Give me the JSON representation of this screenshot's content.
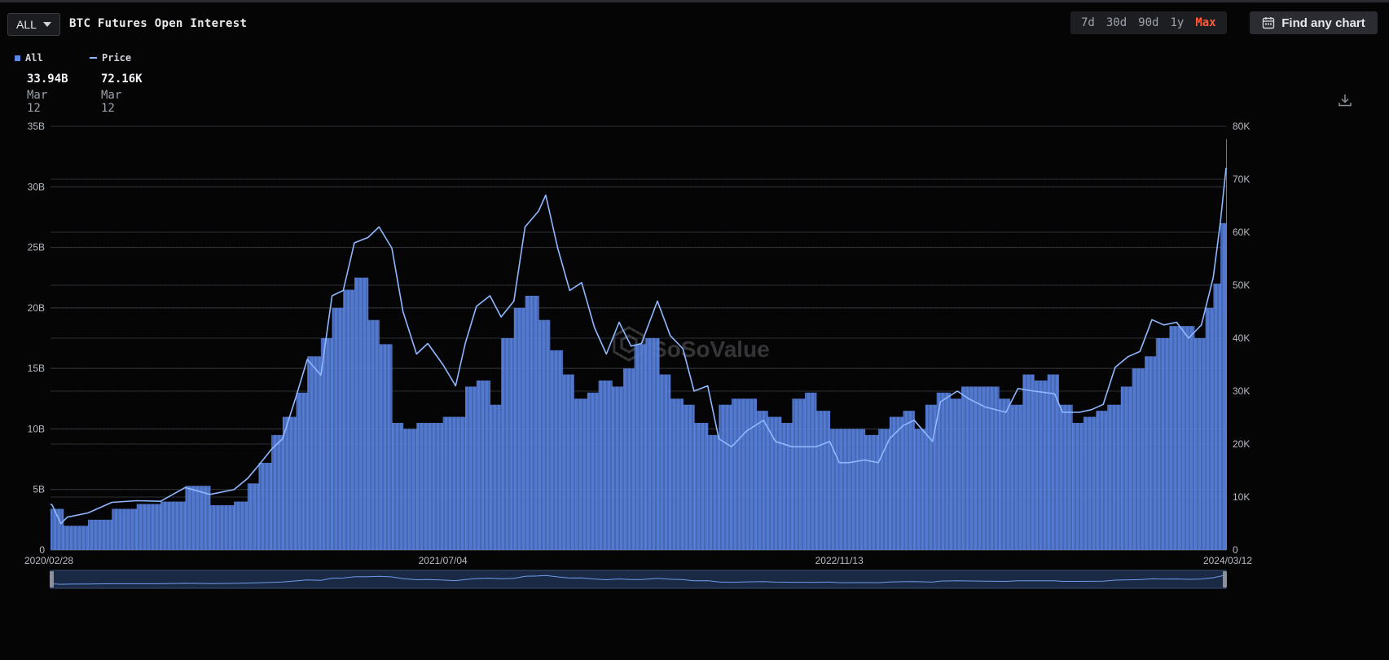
{
  "header": {
    "asset_select": "ALL",
    "title": "BTC Futures Open Interest",
    "ranges": [
      "7d",
      "30d",
      "90d",
      "1y",
      "Max"
    ],
    "active_range": "Max",
    "find_button": "Find any chart"
  },
  "legend": {
    "items": [
      {
        "label": "All",
        "value": "33.94B",
        "date": "Mar 12",
        "color": "#5b86e6",
        "kind": "bar"
      },
      {
        "label": "Price",
        "value": "72.16K",
        "date": "Mar 12",
        "color": "#8fb8ff",
        "kind": "line"
      }
    ]
  },
  "icons": {
    "download": "download-icon",
    "calendar": "calendar-icon",
    "watermark_logo": "sosovalue-logo-icon"
  },
  "watermark_text": "SoSoValue",
  "chart_data": {
    "type": "bar",
    "title": "BTC Futures Open Interest",
    "x_tick_labels": [
      "2020/02/28",
      "2021/07/04",
      "2022/11/13",
      "2024/03/12"
    ],
    "y_left": {
      "ticks": [
        "0",
        "5B",
        "10B",
        "15B",
        "20B",
        "25B",
        "30B",
        "35B"
      ],
      "range": [
        0,
        35
      ],
      "unit": "B"
    },
    "y_right": {
      "ticks": [
        "0",
        "10K",
        "20K",
        "30K",
        "40K",
        "50K",
        "60K",
        "70K",
        "80K"
      ],
      "range": [
        0,
        80
      ],
      "unit": "K"
    },
    "grid": true,
    "legend_position": "top-left",
    "series": [
      {
        "name": "All",
        "kind": "bar",
        "axis": "left",
        "color": "#5b86e6",
        "x": [
          "2020-02-28",
          "2020-03-15",
          "2020-04-15",
          "2020-05-15",
          "2020-06-15",
          "2020-07-15",
          "2020-08-15",
          "2020-09-15",
          "2020-10-15",
          "2020-11-01",
          "2020-11-15",
          "2020-12-01",
          "2020-12-15",
          "2021-01-01",
          "2021-01-15",
          "2021-02-01",
          "2021-02-15",
          "2021-03-01",
          "2021-03-15",
          "2021-04-01",
          "2021-04-15",
          "2021-05-01",
          "2021-05-15",
          "2021-06-01",
          "2021-06-15",
          "2021-07-04",
          "2021-08-01",
          "2021-08-15",
          "2021-09-01",
          "2021-09-15",
          "2021-10-01",
          "2021-10-15",
          "2021-11-01",
          "2021-11-15",
          "2021-12-01",
          "2021-12-15",
          "2022-01-01",
          "2022-01-15",
          "2022-02-01",
          "2022-02-15",
          "2022-03-01",
          "2022-03-15",
          "2022-04-01",
          "2022-04-15",
          "2022-05-01",
          "2022-05-15",
          "2022-06-01",
          "2022-06-15",
          "2022-07-01",
          "2022-08-01",
          "2022-08-15",
          "2022-09-01",
          "2022-09-15",
          "2022-10-01",
          "2022-10-15",
          "2022-11-01",
          "2022-11-13",
          "2022-12-15",
          "2023-01-01",
          "2023-01-15",
          "2023-02-01",
          "2023-02-15",
          "2023-03-01",
          "2023-03-15",
          "2023-04-01",
          "2023-04-15",
          "2023-05-01",
          "2023-06-01",
          "2023-06-15",
          "2023-07-01",
          "2023-07-15",
          "2023-08-01",
          "2023-08-15",
          "2023-09-01",
          "2023-09-15",
          "2023-10-01",
          "2023-10-15",
          "2023-11-01",
          "2023-11-15",
          "2023-12-01",
          "2023-12-15",
          "2024-01-01",
          "2024-01-15",
          "2024-02-01",
          "2024-02-15",
          "2024-02-25",
          "2024-03-05",
          "2024-03-12"
        ],
        "values": [
          3.4,
          2.0,
          2.5,
          3.4,
          3.8,
          4.0,
          5.3,
          3.7,
          4.0,
          5.5,
          7.2,
          9.5,
          11.0,
          13.0,
          16.0,
          17.5,
          20.0,
          21.5,
          22.5,
          19.0,
          17.0,
          10.5,
          10.0,
          10.5,
          10.5,
          11.0,
          13.5,
          14.0,
          12.0,
          17.5,
          20.0,
          21.0,
          19.0,
          16.5,
          14.5,
          12.5,
          13.0,
          14.0,
          13.5,
          15.0,
          17.0,
          17.5,
          14.5,
          12.5,
          12.0,
          10.5,
          9.5,
          12.0,
          12.5,
          11.5,
          11.0,
          10.5,
          12.5,
          13.0,
          11.5,
          10.0,
          10.0,
          9.5,
          10.0,
          11.0,
          11.5,
          10.0,
          12.0,
          13.0,
          12.5,
          13.5,
          13.5,
          12.5,
          12.0,
          14.5,
          14.0,
          14.5,
          12.0,
          10.5,
          11.0,
          11.5,
          12.0,
          13.5,
          15.0,
          16.0,
          17.5,
          18.5,
          18.5,
          17.5,
          20.0,
          22.0,
          27.0,
          33.94
        ]
      },
      {
        "name": "Price",
        "kind": "line",
        "axis": "right",
        "color": "#8fb8ff",
        "x": [
          "2020-02-28",
          "2020-03-01",
          "2020-03-12",
          "2020-03-20",
          "2020-04-15",
          "2020-05-15",
          "2020-06-15",
          "2020-07-15",
          "2020-08-15",
          "2020-09-15",
          "2020-10-15",
          "2020-11-01",
          "2020-11-15",
          "2020-12-01",
          "2020-12-15",
          "2021-01-01",
          "2021-01-15",
          "2021-02-01",
          "2021-02-15",
          "2021-03-01",
          "2021-03-15",
          "2021-04-01",
          "2021-04-15",
          "2021-05-01",
          "2021-05-15",
          "2021-06-01",
          "2021-06-15",
          "2021-07-04",
          "2021-07-20",
          "2021-08-01",
          "2021-08-15",
          "2021-09-01",
          "2021-09-15",
          "2021-10-01",
          "2021-10-15",
          "2021-11-01",
          "2021-11-10",
          "2021-11-25",
          "2021-12-10",
          "2021-12-25",
          "2022-01-10",
          "2022-01-25",
          "2022-02-10",
          "2022-02-25",
          "2022-03-10",
          "2022-03-30",
          "2022-04-15",
          "2022-05-01",
          "2022-05-15",
          "2022-06-01",
          "2022-06-15",
          "2022-07-01",
          "2022-07-20",
          "2022-08-10",
          "2022-08-25",
          "2022-09-15",
          "2022-10-15",
          "2022-11-01",
          "2022-11-13",
          "2022-11-25",
          "2022-12-15",
          "2023-01-01",
          "2023-01-15",
          "2023-02-01",
          "2023-02-15",
          "2023-03-10",
          "2023-03-20",
          "2023-04-10",
          "2023-04-25",
          "2023-05-15",
          "2023-06-10",
          "2023-06-25",
          "2023-07-15",
          "2023-08-10",
          "2023-08-20",
          "2023-09-10",
          "2023-09-25",
          "2023-10-10",
          "2023-10-25",
          "2023-11-10",
          "2023-11-25",
          "2023-12-10",
          "2023-12-25",
          "2024-01-10",
          "2024-01-25",
          "2024-02-10",
          "2024-02-25",
          "2024-03-05",
          "2024-03-12"
        ],
        "values": [
          8.7,
          8.5,
          5.0,
          6.2,
          7.0,
          9.0,
          9.3,
          9.2,
          11.8,
          10.5,
          11.4,
          13.5,
          16.0,
          19.0,
          21.0,
          29.0,
          36.0,
          33.0,
          48.0,
          49.0,
          58.0,
          59.0,
          61.0,
          57.0,
          45.0,
          37.0,
          39.0,
          35.0,
          31.0,
          39.0,
          46.0,
          48.0,
          44.0,
          47.0,
          61.0,
          64.0,
          67.0,
          57.0,
          49.0,
          50.5,
          42.0,
          37.0,
          43.0,
          38.5,
          39.0,
          47.0,
          40.5,
          38.0,
          30.0,
          31.0,
          21.0,
          19.5,
          22.5,
          24.5,
          20.5,
          19.5,
          19.5,
          20.5,
          16.5,
          16.5,
          17.0,
          16.5,
          21.0,
          23.5,
          24.5,
          20.5,
          28.0,
          30.0,
          28.5,
          27.0,
          26.0,
          30.5,
          30.0,
          29.5,
          26.0,
          26.0,
          26.5,
          27.5,
          34.5,
          36.5,
          37.5,
          43.5,
          42.5,
          43.0,
          40.0,
          42.5,
          51.5,
          62.0,
          72.16
        ]
      }
    ]
  }
}
